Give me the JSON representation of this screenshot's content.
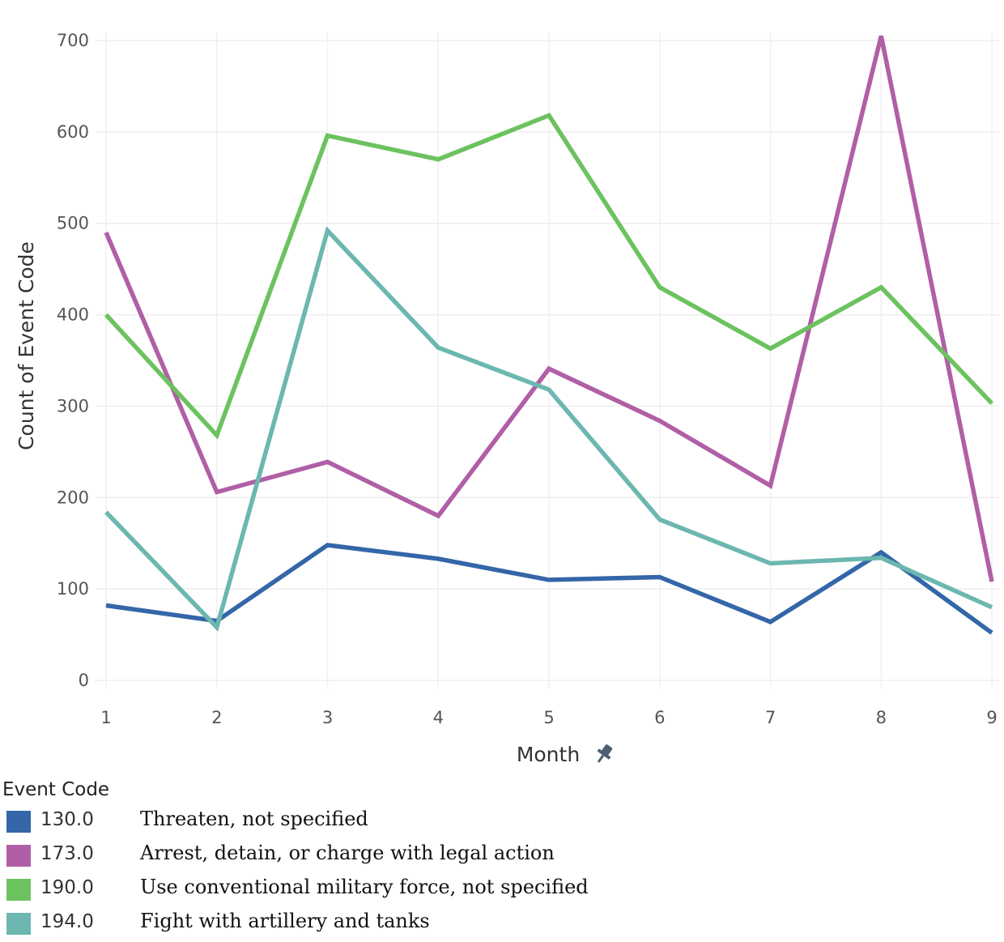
{
  "chart_data": {
    "type": "line",
    "title": "",
    "xlabel": "Month",
    "ylabel": "Count of Event Code",
    "x": [
      1,
      2,
      3,
      4,
      5,
      6,
      7,
      8,
      9
    ],
    "x_tick_labels": [
      "1",
      "2",
      "3",
      "4",
      "5",
      "6",
      "7",
      "8",
      "9"
    ],
    "y_ticks": [
      0,
      100,
      200,
      300,
      400,
      500,
      600,
      700
    ],
    "y_tick_labels": [
      "0",
      "100",
      "200",
      "300",
      "400",
      "500",
      "600",
      "700"
    ],
    "ylim": [
      0,
      700
    ],
    "grid": true,
    "legend_title": "Event Code",
    "legend_position": "bottom-left",
    "series": [
      {
        "code": "130.0",
        "name": "Threaten, not specified",
        "color": "#3466A8",
        "values": [
          82,
          65,
          148,
          133,
          110,
          113,
          64,
          140,
          52
        ]
      },
      {
        "code": "173.0",
        "name": "Arrest, detain, or charge with legal action",
        "color": "#B05FA6",
        "values": [
          490,
          206,
          239,
          180,
          341,
          284,
          213,
          705,
          108
        ]
      },
      {
        "code": "190.0",
        "name": "Use conventional military force, not specified",
        "color": "#6CC25F",
        "values": [
          400,
          268,
          596,
          570,
          618,
          430,
          363,
          430,
          303
        ]
      },
      {
        "code": "194.0",
        "name": "Fight with artillery and tanks",
        "color": "#6CB7AF",
        "values": [
          184,
          58,
          492,
          364,
          318,
          176,
          128,
          134,
          80
        ]
      }
    ]
  }
}
